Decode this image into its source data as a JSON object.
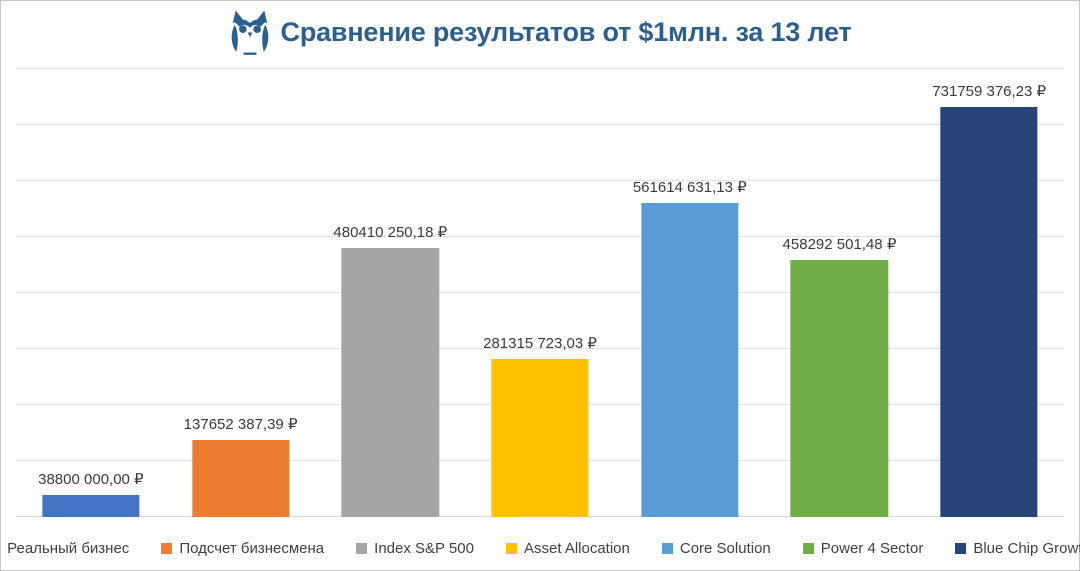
{
  "header": {
    "title": "Сравнение результатов от $1млн. за 13 лет",
    "title_color": "#2c5f8c",
    "logo_icon": "owl-logo-icon",
    "logo_color": "#2c608f"
  },
  "chart_data": {
    "type": "bar",
    "title": "Сравнение результатов от $1млн. за 13 лет",
    "categories": [
      "Реальный бизнес",
      "Подсчет бизнесмена",
      "Index S&P 500",
      "Asset Allocation",
      "Core Solution",
      "Power 4 Sector",
      "Blue Chip Growth"
    ],
    "values": [
      38800000.0,
      137652387.39,
      480410250.18,
      281315723.03,
      561614631.13,
      458292501.48,
      731759376.23
    ],
    "value_labels": [
      "38800 000,00 ₽",
      "137652 387,39 ₽",
      "480410 250,18 ₽",
      "281315 723,03 ₽",
      "561614 631,13 ₽",
      "458292 501,48 ₽",
      "731759 376,23 ₽"
    ],
    "colors": [
      "#4472c4",
      "#ed7d31",
      "#a5a5a5",
      "#ffc000",
      "#5b9bd5",
      "#70ad47",
      "#264478"
    ],
    "xlabel": "",
    "ylabel": "",
    "ylim": [
      0,
      800000000
    ],
    "gridline_step": 100000000,
    "grid": true,
    "gridline_color": "#e2e2e2",
    "legend_position": "bottom",
    "currency": "₽"
  }
}
